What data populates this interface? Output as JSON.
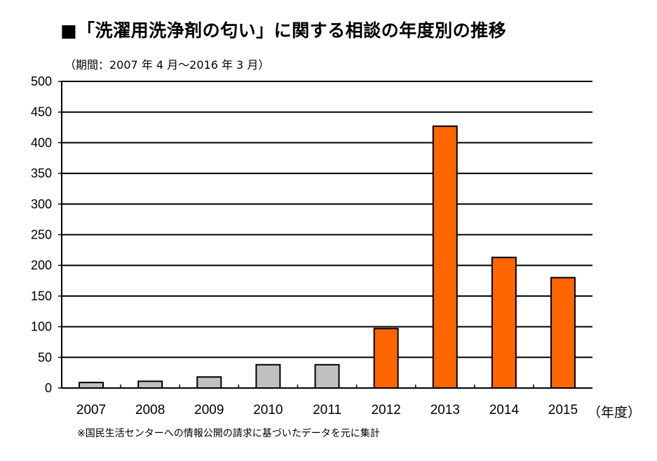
{
  "title": "■「洗濯用洗浄剤の匂い」に関する相談の年度別の推移",
  "period_note": "（期間：2007 年 4 月～2016 年 3 月）",
  "unit_label": "（年度）",
  "footnote": "※国民生活センターへの情報公開の請求に基づいたデータを元に集計",
  "colors": {
    "gray_bar": "#c0c0c0",
    "orange_bar": "#ff6600",
    "bar_stroke": "#000000"
  },
  "chart_data": {
    "type": "bar",
    "title": "■「洗濯用洗浄剤の匂い」に関する相談の年度別の推移",
    "xlabel": "（年度）",
    "ylabel": "",
    "categories": [
      "2007",
      "2008",
      "2009",
      "2010",
      "2011",
      "2012",
      "2013",
      "2014",
      "2015"
    ],
    "values": [
      9,
      11,
      18,
      38,
      38,
      97,
      427,
      213,
      180
    ],
    "bar_colors": [
      "gray",
      "gray",
      "gray",
      "gray",
      "gray",
      "orange",
      "orange",
      "orange",
      "orange"
    ],
    "ylim": [
      0,
      500
    ],
    "yticks": [
      0,
      50,
      100,
      150,
      200,
      250,
      300,
      350,
      400,
      450,
      500
    ],
    "grid": true,
    "legend": "none"
  }
}
